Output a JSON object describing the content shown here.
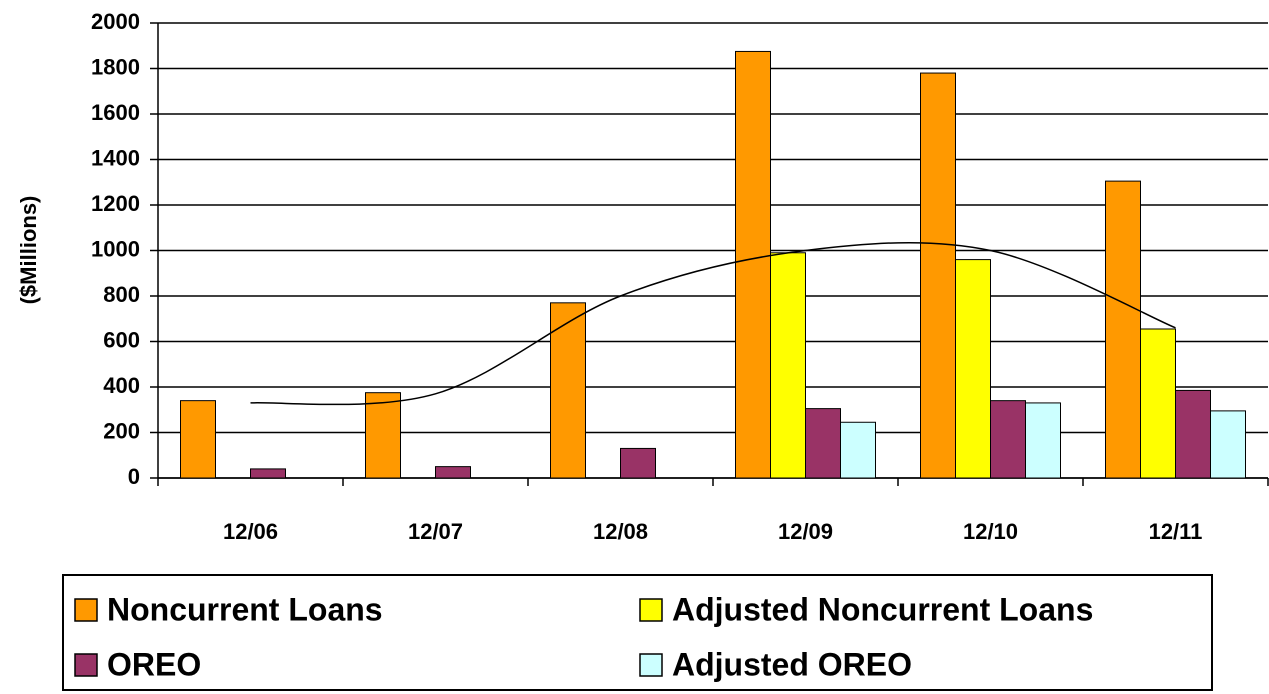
{
  "chart_data": {
    "type": "bar",
    "y_label": "($Millions)",
    "categories": [
      "12/06",
      "12/07",
      "12/08",
      "12/09",
      "12/10",
      "12/11"
    ],
    "series": [
      {
        "name": "Noncurrent Loans",
        "color": "#ff9900",
        "values": [
          340,
          375,
          770,
          1875,
          1780,
          1305
        ]
      },
      {
        "name": "Adjusted Noncurrent Loans",
        "color": "#ffff00",
        "values": [
          null,
          null,
          null,
          990,
          960,
          655
        ]
      },
      {
        "name": "OREO",
        "color": "#993366",
        "values": [
          40,
          50,
          130,
          305,
          340,
          385
        ]
      },
      {
        "name": "Adjusted OREO",
        "color": "#ccffff",
        "values": [
          null,
          null,
          null,
          245,
          330,
          295
        ]
      }
    ],
    "trendline": {
      "color": "#000000",
      "values": [
        330,
        370,
        800,
        1000,
        1000,
        660
      ]
    },
    "ylim": [
      0,
      2000
    ],
    "yticks": [
      0,
      200,
      400,
      600,
      800,
      1000,
      1200,
      1400,
      1600,
      1800,
      2000
    ],
    "grid": true
  }
}
